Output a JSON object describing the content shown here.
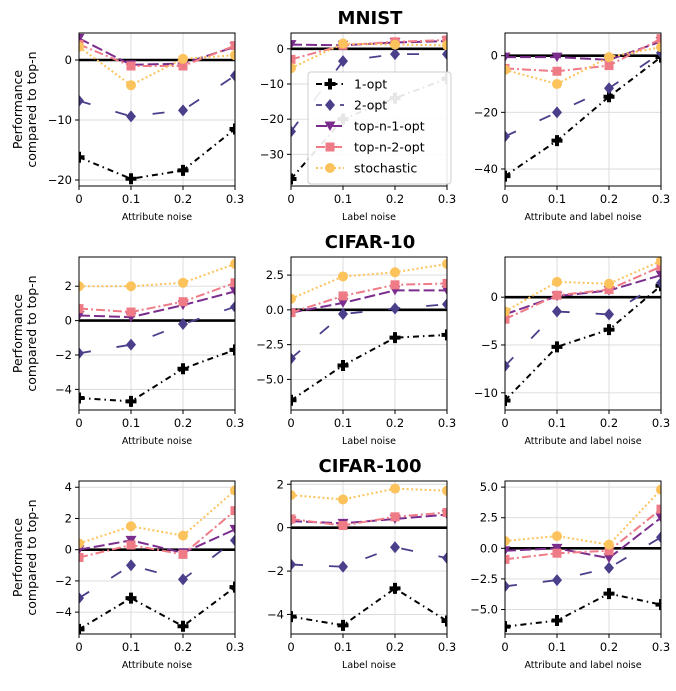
{
  "figure_titles": [
    "MNIST",
    "CIFAR-10",
    "CIFAR-100"
  ],
  "ylabel_lines": [
    "Performance",
    "compared to top-n"
  ],
  "colors": {
    "1-opt": "#000000",
    "2-opt": "#4a3f8a",
    "top-n-1-opt": "#7b2d8e",
    "top-n-2-opt": "#ee7b86",
    "stochastic": "#fcc35c",
    "baseline": "#000000",
    "grid": "#d9d9d9"
  },
  "legend": {
    "entries": [
      "1-opt",
      "2-opt",
      "top-n-1-opt",
      "top-n-2-opt",
      "stochastic"
    ]
  },
  "chart_data": [
    {
      "type": "line",
      "dataset": "MNIST",
      "xlabel": "Attribute noise",
      "x": [
        0,
        0.1,
        0.2,
        0.3
      ],
      "xticks": [
        "0",
        "0.1",
        "0.2",
        "0.3"
      ],
      "ylim": [
        -21,
        4.5
      ],
      "yticks": [
        -20,
        -10,
        0
      ],
      "series": [
        {
          "name": "1-opt",
          "values": [
            -16.2,
            -19.8,
            -18.4,
            -11.5
          ]
        },
        {
          "name": "2-opt",
          "values": [
            -6.8,
            -9.4,
            -8.4,
            -2.6
          ]
        },
        {
          "name": "top-n-1-opt",
          "values": [
            3.6,
            -0.8,
            -0.6,
            2.2
          ]
        },
        {
          "name": "top-n-2-opt",
          "values": [
            2.6,
            -1.0,
            -1.0,
            2.4
          ]
        },
        {
          "name": "stochastic",
          "values": [
            2.2,
            -4.2,
            0.2,
            0.8
          ]
        }
      ]
    },
    {
      "type": "line",
      "dataset": "MNIST",
      "xlabel": "Label noise",
      "x": [
        0,
        0.1,
        0.2,
        0.3
      ],
      "xticks": [
        "0",
        "0.1",
        "0.2",
        "0.3"
      ],
      "ylim": [
        -39,
        4.5
      ],
      "yticks": [
        -30,
        -20,
        -10,
        0
      ],
      "series": [
        {
          "name": "1-opt",
          "values": [
            -37.0,
            -20.0,
            -14.0,
            -8.5
          ]
        },
        {
          "name": "2-opt",
          "values": [
            -23.5,
            -3.5,
            -1.5,
            -1.5
          ]
        },
        {
          "name": "top-n-1-opt",
          "values": [
            1.2,
            1.0,
            1.8,
            2.2
          ]
        },
        {
          "name": "top-n-2-opt",
          "values": [
            -3.0,
            1.0,
            2.0,
            2.5
          ]
        },
        {
          "name": "stochastic",
          "values": [
            -5.5,
            1.5,
            1.2,
            1.0
          ]
        }
      ]
    },
    {
      "type": "line",
      "dataset": "MNIST",
      "xlabel": "Attribute and label noise",
      "x": [
        0,
        0.1,
        0.2,
        0.3
      ],
      "xticks": [
        "0",
        "0.1",
        "0.2",
        "0.3"
      ],
      "ylim": [
        -46,
        8
      ],
      "yticks": [
        -40,
        -20,
        0
      ],
      "series": [
        {
          "name": "1-opt",
          "values": [
            -42.5,
            -30.0,
            -14.5,
            -0.5
          ]
        },
        {
          "name": "2-opt",
          "values": [
            -28.5,
            -20.0,
            -11.5,
            1.0
          ]
        },
        {
          "name": "top-n-1-opt",
          "values": [
            -0.5,
            -0.5,
            -1.5,
            5.0
          ]
        },
        {
          "name": "top-n-2-opt",
          "values": [
            -4.5,
            -5.5,
            -3.5,
            6.0
          ]
        },
        {
          "name": "stochastic",
          "values": [
            -5.0,
            -10.0,
            -0.5,
            3.0
          ]
        }
      ]
    },
    {
      "type": "line",
      "dataset": "CIFAR-10",
      "xlabel": "Attribute noise",
      "x": [
        0,
        0.1,
        0.2,
        0.3
      ],
      "xticks": [
        "0",
        "0.1",
        "0.2",
        "0.3"
      ],
      "ylim": [
        -5.2,
        3.7
      ],
      "yticks": [
        -4,
        -2,
        0,
        2
      ],
      "series": [
        {
          "name": "1-opt",
          "values": [
            -4.5,
            -4.7,
            -2.8,
            -1.7
          ]
        },
        {
          "name": "2-opt",
          "values": [
            -1.9,
            -1.4,
            -0.2,
            0.8
          ]
        },
        {
          "name": "top-n-1-opt",
          "values": [
            0.3,
            0.2,
            0.9,
            1.7
          ]
        },
        {
          "name": "top-n-2-opt",
          "values": [
            0.7,
            0.5,
            1.1,
            2.2
          ]
        },
        {
          "name": "stochastic",
          "values": [
            2.0,
            2.0,
            2.2,
            3.3
          ]
        }
      ]
    },
    {
      "type": "line",
      "dataset": "CIFAR-10",
      "xlabel": "Label noise",
      "x": [
        0,
        0.1,
        0.2,
        0.3
      ],
      "xticks": [
        "0",
        "0.1",
        "0.2",
        "0.3"
      ],
      "ylim": [
        -7.2,
        3.8
      ],
      "yticks": [
        -5.0,
        -2.5,
        0.0,
        2.5
      ],
      "yticklabels": [
        "−5.0",
        "−2.5",
        "0.0",
        "2.5"
      ],
      "series": [
        {
          "name": "1-opt",
          "values": [
            -6.5,
            -4.0,
            -2.0,
            -1.8
          ]
        },
        {
          "name": "2-opt",
          "values": [
            -3.5,
            -0.3,
            0.1,
            0.4
          ]
        },
        {
          "name": "top-n-1-opt",
          "values": [
            -0.2,
            0.5,
            1.4,
            1.4
          ]
        },
        {
          "name": "top-n-2-opt",
          "values": [
            -0.2,
            1.0,
            1.8,
            1.9
          ]
        },
        {
          "name": "stochastic",
          "values": [
            0.8,
            2.4,
            2.7,
            3.3
          ]
        }
      ]
    },
    {
      "type": "line",
      "dataset": "CIFAR-10",
      "xlabel": "Attribute and label noise",
      "x": [
        0,
        0.1,
        0.2,
        0.3
      ],
      "xticks": [
        "0",
        "0.1",
        "0.2",
        "0.3"
      ],
      "ylim": [
        -11.8,
        4.2
      ],
      "yticks": [
        -10,
        -5,
        0
      ],
      "series": [
        {
          "name": "1-opt",
          "values": [
            -10.8,
            -5.2,
            -3.4,
            1.2
          ]
        },
        {
          "name": "2-opt",
          "values": [
            -7.2,
            -1.5,
            -1.8,
            1.5
          ]
        },
        {
          "name": "top-n-1-opt",
          "values": [
            -1.8,
            0.1,
            0.7,
            2.3
          ]
        },
        {
          "name": "top-n-2-opt",
          "values": [
            -2.3,
            0.2,
            0.8,
            3.2
          ]
        },
        {
          "name": "stochastic",
          "values": [
            -1.5,
            1.6,
            1.4,
            3.8
          ]
        }
      ]
    },
    {
      "type": "line",
      "dataset": "CIFAR-100",
      "xlabel": "Attribute noise",
      "x": [
        0,
        0.1,
        0.2,
        0.3
      ],
      "xticks": [
        "0",
        "0.1",
        "0.2",
        "0.3"
      ],
      "ylim": [
        -5.4,
        4.4
      ],
      "yticks": [
        -4,
        -2,
        0,
        2,
        4
      ],
      "series": [
        {
          "name": "1-opt",
          "values": [
            -5.1,
            -3.1,
            -4.9,
            -2.4
          ]
        },
        {
          "name": "2-opt",
          "values": [
            -3.1,
            -1.0,
            -1.9,
            0.6
          ]
        },
        {
          "name": "top-n-1-opt",
          "values": [
            0.0,
            0.6,
            -0.2,
            1.3
          ]
        },
        {
          "name": "top-n-2-opt",
          "values": [
            -0.5,
            0.3,
            -0.3,
            2.5
          ]
        },
        {
          "name": "stochastic",
          "values": [
            0.4,
            1.5,
            0.9,
            3.8
          ]
        }
      ]
    },
    {
      "type": "line",
      "dataset": "CIFAR-100",
      "xlabel": "Label noise",
      "x": [
        0,
        0.1,
        0.2,
        0.3
      ],
      "xticks": [
        "0",
        "0.1",
        "0.2",
        "0.3"
      ],
      "ylim": [
        -4.9,
        2.15
      ],
      "yticks": [
        -4,
        -2,
        0,
        2
      ],
      "series": [
        {
          "name": "1-opt",
          "values": [
            -4.1,
            -4.5,
            -2.8,
            -4.3
          ]
        },
        {
          "name": "2-opt",
          "values": [
            -1.7,
            -1.8,
            -0.9,
            -1.4
          ]
        },
        {
          "name": "top-n-1-opt",
          "values": [
            0.3,
            0.2,
            0.4,
            0.6
          ]
        },
        {
          "name": "top-n-2-opt",
          "values": [
            0.4,
            0.1,
            0.5,
            0.7
          ]
        },
        {
          "name": "stochastic",
          "values": [
            1.5,
            1.3,
            1.8,
            1.7
          ]
        }
      ]
    },
    {
      "type": "line",
      "dataset": "CIFAR-100",
      "xlabel": "Attribute and label noise",
      "x": [
        0,
        0.1,
        0.2,
        0.3
      ],
      "xticks": [
        "0",
        "0.1",
        "0.2",
        "0.3"
      ],
      "ylim": [
        -7.0,
        5.5
      ],
      "yticks": [
        -5.0,
        -2.5,
        0.0,
        2.5,
        5.0
      ],
      "yticklabels": [
        "−5.0",
        "−2.5",
        "0.0",
        "2.5",
        "5.0"
      ],
      "series": [
        {
          "name": "1-opt",
          "values": [
            -6.4,
            -5.9,
            -3.7,
            -4.6
          ]
        },
        {
          "name": "2-opt",
          "values": [
            -3.1,
            -2.6,
            -1.6,
            0.9
          ]
        },
        {
          "name": "top-n-1-opt",
          "values": [
            -0.2,
            0.0,
            -0.8,
            2.5
          ]
        },
        {
          "name": "top-n-2-opt",
          "values": [
            -0.9,
            -0.4,
            -0.2,
            3.2
          ]
        },
        {
          "name": "stochastic",
          "values": [
            0.6,
            1.0,
            0.3,
            4.8
          ]
        }
      ]
    }
  ]
}
